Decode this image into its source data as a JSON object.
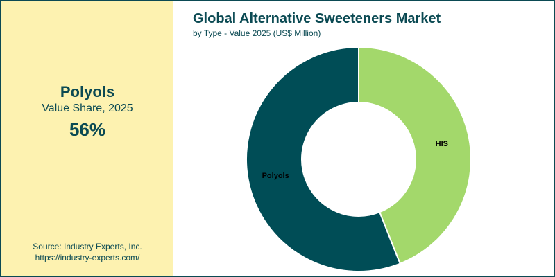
{
  "highlight": {
    "segment": "Polyols",
    "label": "Value Share, 2025",
    "value": "56%"
  },
  "source": {
    "line1": "Source: Industry Experts, Inc.",
    "line2": "https://industry-experts.com/"
  },
  "colors": {
    "dark": "#004d56",
    "light": "#a3d86b",
    "panel": "#fdf2b0"
  },
  "chart_data": {
    "type": "pie",
    "title": "Global Alternative Sweeteners Market",
    "subtitle": "by Type - Value 2025 (US$ Million)",
    "categories": [
      "HIS",
      "Polyols"
    ],
    "values": [
      44,
      56
    ],
    "legend": "none"
  }
}
